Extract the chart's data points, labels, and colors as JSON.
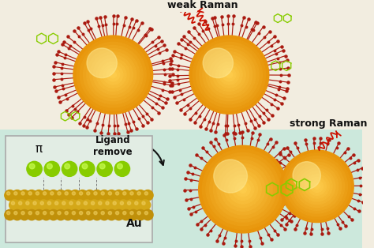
{
  "bg_top": "#f2ede0",
  "bg_bottom": "#cce8dc",
  "gold_color": "#e8940a",
  "gold_light": "#f5c84a",
  "ligand_color": "#aa1a10",
  "molecule_color": "#88cc00",
  "au_surface_color": "#c8980a",
  "au_atom_color": "#d4a818",
  "au_atom_highlight": "#f0d060",
  "text_color": "#111111",
  "arrow_color": "#cc1100",
  "weak_raman_text": "weak Raman",
  "strong_raman_text": "strong Raman",
  "ligand_remove_text": "Ligand\nremove",
  "au_text": "Au",
  "pi_text": "π",
  "inset_bg": "#e2ede4",
  "inset_edge": "#aaaaaa"
}
